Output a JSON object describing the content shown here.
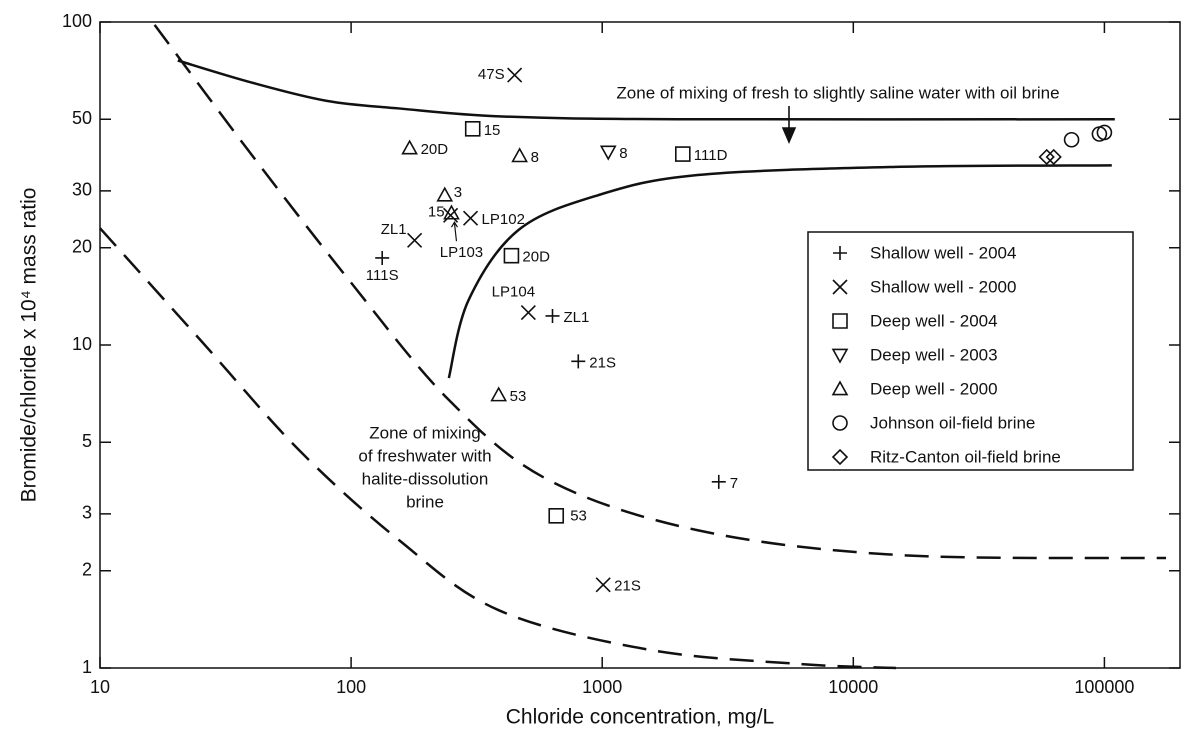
{
  "chart_data": {
    "type": "scatter",
    "xlabel": "Chloride concentration, mg/L",
    "ylabel": "Bromide/chloride x 10⁴ mass ratio",
    "xscale": "log",
    "yscale": "log",
    "xlim": [
      10,
      200000
    ],
    "ylim": [
      1,
      100
    ],
    "xticks": [
      10,
      100,
      1000,
      10000,
      100000
    ],
    "yticks": [
      1,
      2,
      3,
      5,
      10,
      20,
      30,
      50,
      100
    ],
    "grid": false,
    "legend": "right",
    "series": [
      {
        "name": "Shallow well - 2004",
        "marker": "plus",
        "color": "#111111",
        "x": [
          133,
          634,
          803,
          2912
        ],
        "values": [
          18.6,
          12.3,
          8.9,
          3.77
        ],
        "labels": [
          "111S",
          "ZL1",
          "21S",
          "7"
        ]
      },
      {
        "name": "Shallow well - 2000",
        "marker": "cross",
        "color": "#111111",
        "x": [
          448,
          179,
          249,
          299,
          508,
          1009
        ],
        "values": [
          68.5,
          21.1,
          25.2,
          24.7,
          12.6,
          1.81
        ],
        "labels": [
          "47S",
          "ZL1",
          "15",
          "LP102",
          "LP104",
          "21S"
        ]
      },
      {
        "name": "Deep well - 2004",
        "marker": "square",
        "color": "#111111",
        "x": [
          305,
          2094,
          435,
          656
        ],
        "values": [
          46.7,
          39,
          18.9,
          2.96
        ],
        "labels": [
          "15",
          "111D",
          "20D",
          "53"
        ]
      },
      {
        "name": "Deep well - 2003",
        "marker": "triangle-down",
        "color": "#111111",
        "x": [
          1057
        ],
        "values": [
          39.6
        ],
        "labels": [
          "8"
        ]
      },
      {
        "name": "Deep well - 2000",
        "marker": "triangle-up",
        "color": "#111111",
        "x": [
          171,
          469,
          236,
          251,
          387
        ],
        "values": [
          40.7,
          38.5,
          29.1,
          25.6,
          7.0
        ],
        "labels": [
          "20D",
          "8",
          "3",
          "LP103",
          "53"
        ]
      },
      {
        "name": "Johnson oil-field brine",
        "marker": "circle",
        "color": "#111111",
        "x": [
          74000,
          95500,
          100000
        ],
        "values": [
          43.2,
          45,
          45.5
        ]
      },
      {
        "name": "Ritz-Canton oil-field brine",
        "marker": "diamond",
        "color": "#111111",
        "x": [
          58900,
          62800
        ],
        "values": [
          38.2,
          38.2
        ]
      }
    ],
    "curves": [
      {
        "style": "solid",
        "x": [
          20.4,
          40,
          80,
          155,
          400,
          2000,
          110000
        ],
        "values": [
          76,
          65,
          57,
          54,
          51,
          50,
          50
        ]
      },
      {
        "style": "solid",
        "x": [
          245,
          294,
          464,
          964,
          2400,
          14800,
          107000
        ],
        "values": [
          7.9,
          13.8,
          22.7,
          29.1,
          33.6,
          35.6,
          36
        ]
      },
      {
        "style": "dashed",
        "x": [
          16.5,
          39,
          98,
          245,
          611,
          2400,
          14800,
          176000
        ],
        "values": [
          98,
          40,
          15.9,
          6.76,
          3.82,
          2.67,
          2.24,
          2.19
        ]
      },
      {
        "style": "dashed",
        "x": [
          10,
          25,
          62,
          155,
          387,
          1525,
          6000,
          14800
        ],
        "values": [
          23,
          10.4,
          4.73,
          2.49,
          1.51,
          1.14,
          1.03,
          1.0
        ]
      }
    ],
    "annotations": [
      {
        "lines": [
          "Zone of mixing of fresh to slightly saline water with oil brine"
        ]
      },
      {
        "lines": [
          "Zone of mixing",
          "of freshwater with",
          "halite-dissolution",
          "brine"
        ]
      }
    ]
  }
}
